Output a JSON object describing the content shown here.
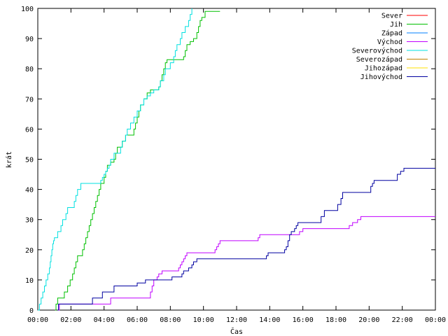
{
  "chart_data": {
    "type": "line",
    "title": "",
    "xlabel": "Čas",
    "ylabel": "krát",
    "xlim": [
      0,
      24
    ],
    "ylim": [
      0,
      100
    ],
    "x_ticks": [
      "00:00",
      "02:00",
      "04:00",
      "06:00",
      "08:00",
      "10:00",
      "12:00",
      "14:00",
      "16:00",
      "18:00",
      "20:00",
      "22:00",
      "00:00"
    ],
    "y_ticks": [
      "0",
      "10",
      "20",
      "30",
      "40",
      "50",
      "60",
      "70",
      "80",
      "90",
      "100"
    ],
    "grid": false,
    "legend_position": "top-right",
    "x_unit": "hours since 00:00",
    "series": [
      {
        "name": "Sever",
        "color": "#ff0000",
        "points": []
      },
      {
        "name": "Jih",
        "color": "#00c000",
        "points": [
          [
            1.05,
            0
          ],
          [
            1.1,
            2
          ],
          [
            1.2,
            4
          ],
          [
            1.6,
            6
          ],
          [
            1.8,
            8
          ],
          [
            1.95,
            10
          ],
          [
            2.1,
            12
          ],
          [
            2.2,
            14
          ],
          [
            2.3,
            16
          ],
          [
            2.4,
            18
          ],
          [
            2.7,
            20
          ],
          [
            2.8,
            22
          ],
          [
            2.9,
            24
          ],
          [
            3.0,
            26
          ],
          [
            3.1,
            28
          ],
          [
            3.2,
            30
          ],
          [
            3.3,
            32
          ],
          [
            3.4,
            34
          ],
          [
            3.5,
            36
          ],
          [
            3.6,
            38
          ],
          [
            3.7,
            40
          ],
          [
            3.8,
            42
          ],
          [
            4.0,
            44
          ],
          [
            4.1,
            46
          ],
          [
            4.2,
            48
          ],
          [
            4.4,
            49
          ],
          [
            4.6,
            50
          ],
          [
            4.7,
            52
          ],
          [
            4.8,
            54
          ],
          [
            5.1,
            56
          ],
          [
            5.3,
            58
          ],
          [
            5.8,
            60
          ],
          [
            5.9,
            62
          ],
          [
            6.0,
            64
          ],
          [
            6.1,
            66
          ],
          [
            6.2,
            68
          ],
          [
            6.4,
            70
          ],
          [
            6.6,
            72
          ],
          [
            6.8,
            73
          ],
          [
            7.3,
            74
          ],
          [
            7.4,
            76
          ],
          [
            7.5,
            78
          ],
          [
            7.6,
            80
          ],
          [
            7.7,
            82
          ],
          [
            7.8,
            83
          ],
          [
            8.8,
            84
          ],
          [
            8.9,
            86
          ],
          [
            9.0,
            88
          ],
          [
            9.2,
            89
          ],
          [
            9.4,
            90
          ],
          [
            9.6,
            92
          ],
          [
            9.7,
            94
          ],
          [
            9.8,
            96
          ],
          [
            9.9,
            97
          ],
          [
            10.1,
            99
          ],
          [
            11.0,
            99
          ]
        ]
      },
      {
        "name": "Západ",
        "color": "#0080ff",
        "points": []
      },
      {
        "name": "Východ",
        "color": "#c000ff",
        "points": [
          [
            1.25,
            0
          ],
          [
            1.3,
            2
          ],
          [
            4.4,
            4
          ],
          [
            6.8,
            6
          ],
          [
            6.9,
            8
          ],
          [
            7.0,
            10
          ],
          [
            7.2,
            11
          ],
          [
            7.3,
            12
          ],
          [
            7.5,
            13
          ],
          [
            8.5,
            14
          ],
          [
            8.6,
            15
          ],
          [
            8.7,
            16
          ],
          [
            8.8,
            17
          ],
          [
            8.9,
            18
          ],
          [
            9.0,
            19
          ],
          [
            10.7,
            20
          ],
          [
            10.8,
            21
          ],
          [
            10.9,
            22
          ],
          [
            11.0,
            23
          ],
          [
            13.3,
            24
          ],
          [
            13.4,
            25
          ],
          [
            15.8,
            26
          ],
          [
            16.0,
            27
          ],
          [
            18.8,
            28
          ],
          [
            19.0,
            29
          ],
          [
            19.3,
            30
          ],
          [
            19.5,
            31
          ],
          [
            24.0,
            31
          ]
        ]
      },
      {
        "name": "Severovýchod",
        "color": "#00e0e0",
        "points": [
          [
            0.0,
            0
          ],
          [
            0.1,
            2
          ],
          [
            0.2,
            4
          ],
          [
            0.3,
            6
          ],
          [
            0.4,
            8
          ],
          [
            0.5,
            10
          ],
          [
            0.6,
            12
          ],
          [
            0.7,
            14
          ],
          [
            0.75,
            16
          ],
          [
            0.8,
            18
          ],
          [
            0.85,
            20
          ],
          [
            0.9,
            22
          ],
          [
            0.95,
            23
          ],
          [
            1.0,
            24
          ],
          [
            1.2,
            26
          ],
          [
            1.4,
            28
          ],
          [
            1.5,
            30
          ],
          [
            1.7,
            32
          ],
          [
            1.8,
            34
          ],
          [
            2.2,
            36
          ],
          [
            2.3,
            38
          ],
          [
            2.4,
            40
          ],
          [
            2.6,
            42
          ],
          [
            3.8,
            43
          ],
          [
            3.9,
            44
          ],
          [
            4.0,
            45
          ],
          [
            4.1,
            46
          ],
          [
            4.2,
            47
          ],
          [
            4.3,
            48
          ],
          [
            4.4,
            50
          ],
          [
            4.6,
            52
          ],
          [
            5.0,
            54
          ],
          [
            5.1,
            56
          ],
          [
            5.3,
            58
          ],
          [
            5.4,
            60
          ],
          [
            5.6,
            62
          ],
          [
            5.8,
            64
          ],
          [
            6.0,
            66
          ],
          [
            6.2,
            68
          ],
          [
            6.4,
            70
          ],
          [
            6.6,
            71
          ],
          [
            6.8,
            72
          ],
          [
            7.0,
            73
          ],
          [
            7.3,
            74
          ],
          [
            7.4,
            76
          ],
          [
            7.6,
            78
          ],
          [
            7.7,
            80
          ],
          [
            8.0,
            82
          ],
          [
            8.2,
            84
          ],
          [
            8.3,
            86
          ],
          [
            8.4,
            88
          ],
          [
            8.6,
            90
          ],
          [
            8.7,
            92
          ],
          [
            8.9,
            94
          ],
          [
            9.1,
            96
          ],
          [
            9.2,
            98
          ],
          [
            9.3,
            100
          ]
        ]
      },
      {
        "name": "Severozápad",
        "color": "#c08000",
        "points": []
      },
      {
        "name": "Jihozápad",
        "color": "#ffe000",
        "points": []
      },
      {
        "name": "Jihovýchod",
        "color": "#0000a0",
        "points": [
          [
            1.2,
            0
          ],
          [
            1.25,
            2
          ],
          [
            3.3,
            4
          ],
          [
            3.9,
            6
          ],
          [
            4.6,
            8
          ],
          [
            6.0,
            9
          ],
          [
            6.5,
            10
          ],
          [
            6.9,
            10
          ],
          [
            8.1,
            11
          ],
          [
            8.7,
            12
          ],
          [
            8.8,
            13
          ],
          [
            9.1,
            14
          ],
          [
            9.3,
            15
          ],
          [
            9.4,
            16
          ],
          [
            9.6,
            17
          ],
          [
            13.8,
            18
          ],
          [
            13.9,
            19
          ],
          [
            14.9,
            20
          ],
          [
            15.0,
            21
          ],
          [
            15.1,
            23
          ],
          [
            15.2,
            25
          ],
          [
            15.3,
            26
          ],
          [
            15.5,
            27
          ],
          [
            15.6,
            28
          ],
          [
            15.7,
            29
          ],
          [
            17.1,
            31
          ],
          [
            17.3,
            33
          ],
          [
            18.1,
            35
          ],
          [
            18.3,
            37
          ],
          [
            18.4,
            39
          ],
          [
            20.1,
            41
          ],
          [
            20.2,
            42
          ],
          [
            20.3,
            43
          ],
          [
            21.7,
            45
          ],
          [
            21.9,
            46
          ],
          [
            22.1,
            47
          ],
          [
            24.0,
            47
          ]
        ]
      }
    ]
  }
}
